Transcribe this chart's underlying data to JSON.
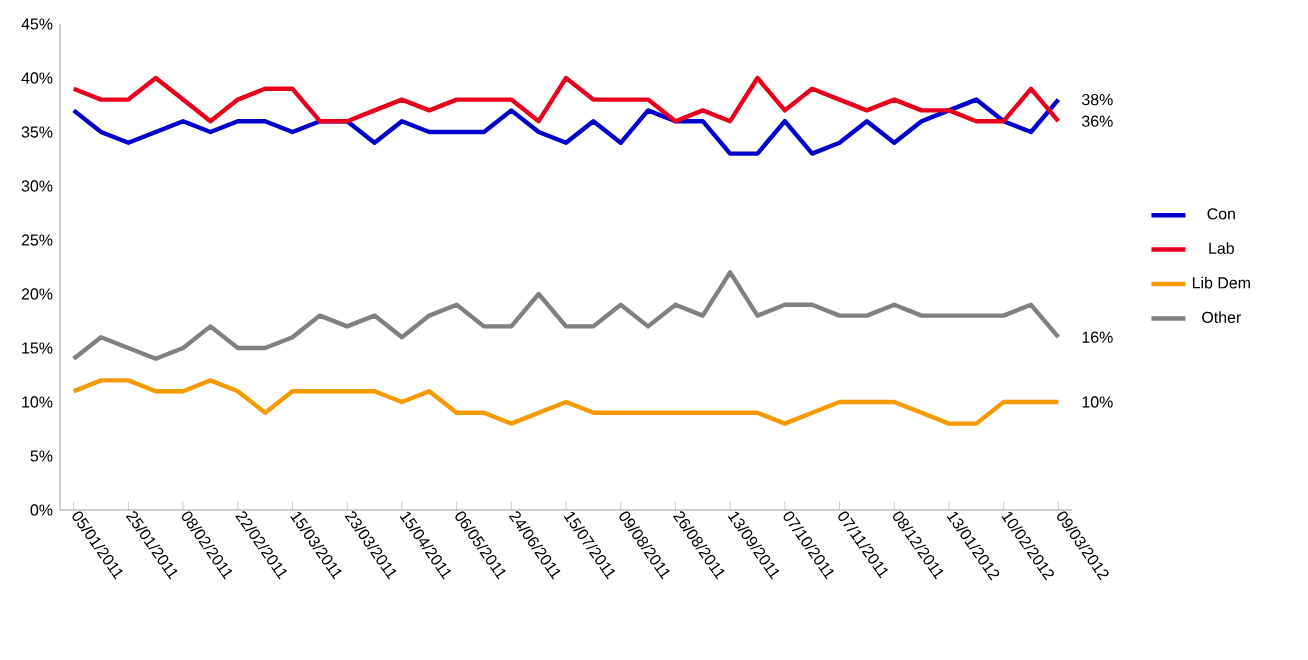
{
  "chart_data": {
    "type": "line",
    "categories": [
      "05/01/2011",
      null,
      "25/01/2011",
      null,
      "08/02/2011",
      null,
      "22/02/2011",
      null,
      "15/03/2011",
      null,
      "23/03/2011",
      null,
      "15/04/2011",
      null,
      "06/05/2011",
      null,
      "24/06/2011",
      null,
      "15/07/2011",
      null,
      "09/08/2011",
      null,
      "26/08/2011",
      null,
      "13/09/2011",
      null,
      "07/10/2011",
      null,
      "07/11/2011",
      null,
      "08/12/2011",
      null,
      "13/01/2012",
      null,
      "10/02/2012",
      null,
      "09/03/2012"
    ],
    "series": [
      {
        "name": "Con",
        "color": "#0000cc",
        "values": [
          37,
          35,
          34,
          35,
          36,
          35,
          36,
          36,
          35,
          36,
          36,
          34,
          36,
          35,
          35,
          35,
          37,
          35,
          34,
          36,
          34,
          37,
          36,
          36,
          33,
          33,
          36,
          33,
          34,
          36,
          34,
          36,
          37,
          38,
          36,
          35,
          38
        ],
        "value_labels": [
          null,
          null,
          null,
          null,
          null,
          null,
          null,
          null,
          null,
          null,
          null,
          null,
          null,
          null,
          null,
          null,
          null,
          null,
          null,
          null,
          null,
          null,
          null,
          null,
          null,
          null,
          null,
          null,
          null,
          null,
          null,
          null,
          null,
          null,
          null,
          null,
          "38%"
        ]
      },
      {
        "name": "Lab",
        "color": "#e8001c",
        "values": [
          39,
          38,
          38,
          40,
          38,
          36,
          38,
          39,
          39,
          36,
          36,
          37,
          38,
          37,
          38,
          38,
          38,
          36,
          40,
          38,
          38,
          38,
          36,
          37,
          36,
          40,
          37,
          39,
          38,
          37,
          38,
          37,
          37,
          36,
          36,
          39,
          36
        ],
        "value_labels": [
          null,
          null,
          null,
          null,
          null,
          null,
          null,
          null,
          null,
          null,
          null,
          null,
          null,
          null,
          null,
          null,
          null,
          null,
          null,
          null,
          null,
          null,
          null,
          null,
          null,
          null,
          null,
          null,
          null,
          null,
          null,
          null,
          null,
          null,
          null,
          null,
          "36%"
        ]
      },
      {
        "name": "Lib Dem",
        "color": "#f59b00",
        "values": [
          11,
          12,
          12,
          11,
          11,
          12,
          11,
          9,
          11,
          11,
          11,
          11,
          10,
          11,
          9,
          9,
          8,
          9,
          10,
          9,
          9,
          9,
          9,
          9,
          9,
          9,
          8,
          9,
          10,
          10,
          10,
          9,
          8,
          8,
          10,
          10,
          10
        ],
        "value_labels": [
          null,
          null,
          null,
          null,
          null,
          null,
          null,
          null,
          null,
          null,
          null,
          null,
          null,
          null,
          null,
          null,
          null,
          null,
          null,
          null,
          null,
          null,
          null,
          null,
          null,
          null,
          null,
          null,
          null,
          null,
          null,
          null,
          null,
          null,
          null,
          null,
          "10%"
        ]
      },
      {
        "name": "Other",
        "color": "#808080",
        "values": [
          14,
          16,
          15,
          14,
          15,
          17,
          15,
          15,
          16,
          18,
          17,
          18,
          16,
          18,
          19,
          17,
          17,
          20,
          17,
          17,
          19,
          17,
          19,
          18,
          22,
          18,
          19,
          19,
          18,
          18,
          19,
          18,
          18,
          18,
          18,
          19,
          16
        ],
        "value_labels": [
          null,
          null,
          null,
          null,
          null,
          null,
          null,
          null,
          null,
          null,
          null,
          null,
          null,
          null,
          null,
          null,
          null,
          null,
          null,
          null,
          null,
          null,
          null,
          null,
          null,
          null,
          null,
          null,
          null,
          null,
          null,
          null,
          null,
          null,
          null,
          null,
          "16%"
        ]
      }
    ],
    "ylim": [
      0,
      45
    ],
    "yticks": [
      {
        "value": 0,
        "label": "0%"
      },
      {
        "value": 5,
        "label": "5%"
      },
      {
        "value": 10,
        "label": "10%"
      },
      {
        "value": 15,
        "label": "15%"
      },
      {
        "value": 20,
        "label": "20%"
      },
      {
        "value": 25,
        "label": "25%"
      },
      {
        "value": 30,
        "label": "30%"
      },
      {
        "value": 35,
        "label": "35%"
      },
      {
        "value": 40,
        "label": "40%"
      },
      {
        "value": 45,
        "label": "45%"
      }
    ],
    "legend": "right",
    "marker": "none",
    "line_style": "solid"
  }
}
